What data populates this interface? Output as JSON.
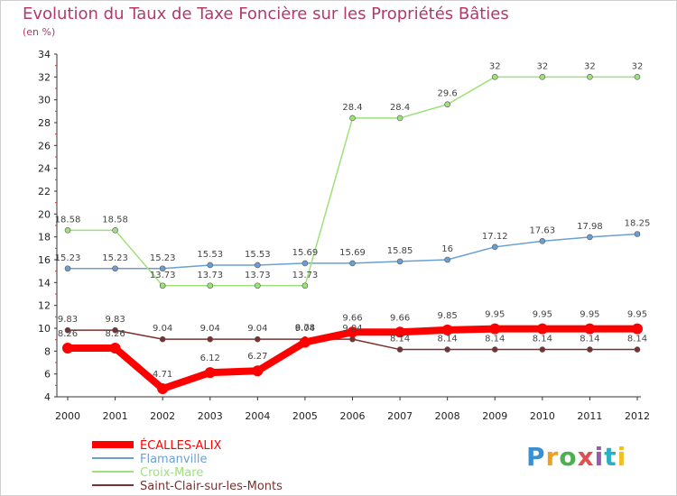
{
  "header": {
    "title": "Evolution du Taux de Taxe Foncière sur les Propriétés Bâties",
    "unit": "(en %)"
  },
  "logo": {
    "text": "Proxiti",
    "colors": [
      "#3a8fd0",
      "#f0a020",
      "#4caf50",
      "#e05050",
      "#9b59b6",
      "#2ab0c0",
      "#f0c020"
    ]
  },
  "chart_data": {
    "type": "line",
    "x": [
      "2000",
      "2001",
      "2002",
      "2003",
      "2004",
      "2005",
      "2006",
      "2007",
      "2008",
      "2009",
      "2010",
      "2011",
      "2012"
    ],
    "ylim": [
      4,
      34
    ],
    "yticks": [
      4,
      6,
      8,
      10,
      12,
      14,
      16,
      18,
      20,
      22,
      24,
      26,
      28,
      30,
      32,
      34
    ],
    "grid": false,
    "legend": "bottom-left",
    "series": [
      {
        "name": "ÉCALLES-ALIX",
        "color": "#ff0000",
        "values": [
          8.26,
          8.26,
          4.71,
          6.12,
          6.27,
          8.78,
          9.66,
          9.66,
          9.85,
          9.95,
          9.95,
          9.95,
          9.95
        ],
        "labels": [
          "8.26",
          "8.26",
          "4.71",
          "6.12",
          "6.27",
          "8.78",
          "9.66",
          "9.66",
          "9.85",
          "9.95",
          "9.95",
          "9.95",
          "9.95"
        ]
      },
      {
        "name": "Flamanville",
        "color": "#6b9fd1",
        "values": [
          15.23,
          15.23,
          15.23,
          15.53,
          15.53,
          15.69,
          15.69,
          15.85,
          16,
          17.12,
          17.63,
          17.98,
          18.25
        ],
        "labels": [
          "15.23",
          "15.23",
          "15.23",
          "15.53",
          "15.53",
          "15.69",
          "15.69",
          "15.85",
          "16",
          "17.12",
          "17.63",
          "17.98",
          "18.25"
        ]
      },
      {
        "name": "Croix-Mare",
        "color": "#9ee07a",
        "values": [
          18.58,
          18.58,
          13.73,
          13.73,
          13.73,
          13.73,
          28.4,
          28.4,
          29.6,
          32,
          32,
          32,
          32
        ],
        "labels": [
          "18.58",
          "18.58",
          "13.73",
          "13.73",
          "13.73",
          "13.73",
          "28.4",
          "28.4",
          "29.6",
          "32",
          "32",
          "32",
          "32"
        ]
      },
      {
        "name": "Saint-Clair-sur-les-Monts",
        "color": "#7a3030",
        "values": [
          9.83,
          9.83,
          9.04,
          9.04,
          9.04,
          9.04,
          9.04,
          8.14,
          8.14,
          8.14,
          8.14,
          8.14,
          8.14
        ],
        "labels": [
          "9.83",
          "9.83",
          "9.04",
          "9.04",
          "9.04",
          "9.04",
          "9.04",
          "8.14",
          "8.14",
          "8.14",
          "8.14",
          "8.14",
          "8.14"
        ]
      }
    ]
  }
}
